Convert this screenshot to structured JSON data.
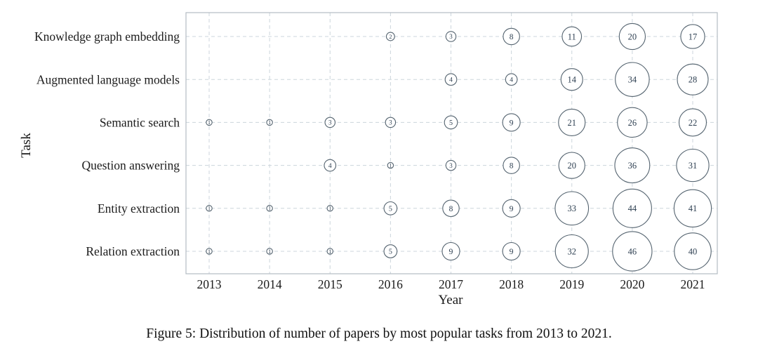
{
  "figure": {
    "caption": "Figure 5: Distribution of number of papers by most popular tasks from 2013 to 2021."
  },
  "chart_data": {
    "type": "scatter",
    "subtype": "bubble",
    "title": "",
    "xlabel": "Year",
    "ylabel": "Task",
    "x_categories": [
      "2013",
      "2014",
      "2015",
      "2016",
      "2017",
      "2018",
      "2019",
      "2020",
      "2021"
    ],
    "y_categories": [
      "Knowledge graph embedding",
      "Augmented language models",
      "Semantic search",
      "Question answering",
      "Entity extraction",
      "Relation extraction"
    ],
    "series": [
      {
        "name": "Knowledge graph embedding",
        "values": [
          null,
          null,
          null,
          2,
          3,
          8,
          11,
          20,
          17
        ]
      },
      {
        "name": "Augmented language models",
        "values": [
          null,
          null,
          null,
          null,
          4,
          4,
          14,
          34,
          28
        ]
      },
      {
        "name": "Semantic search",
        "values": [
          1,
          1,
          3,
          3,
          5,
          9,
          21,
          26,
          22
        ]
      },
      {
        "name": "Question answering",
        "values": [
          null,
          null,
          4,
          1,
          3,
          8,
          20,
          36,
          31
        ]
      },
      {
        "name": "Entity extraction",
        "values": [
          1,
          1,
          1,
          5,
          8,
          9,
          33,
          44,
          41
        ]
      },
      {
        "name": "Relation extraction",
        "values": [
          1,
          1,
          1,
          5,
          9,
          9,
          32,
          46,
          40
        ]
      }
    ],
    "bubble_sizing": "area proportional to value",
    "grid": "dashed horizontal and vertical gridlines at every category",
    "legend": "none",
    "colors": {
      "bubble_stroke": "#54636f",
      "bubble_fill": "#ffffff",
      "value_text": "#2c3e50",
      "grid_line": "#ccd5dc",
      "plot_border": "#b3bcc3",
      "label_text": "#1b1b1b"
    }
  }
}
